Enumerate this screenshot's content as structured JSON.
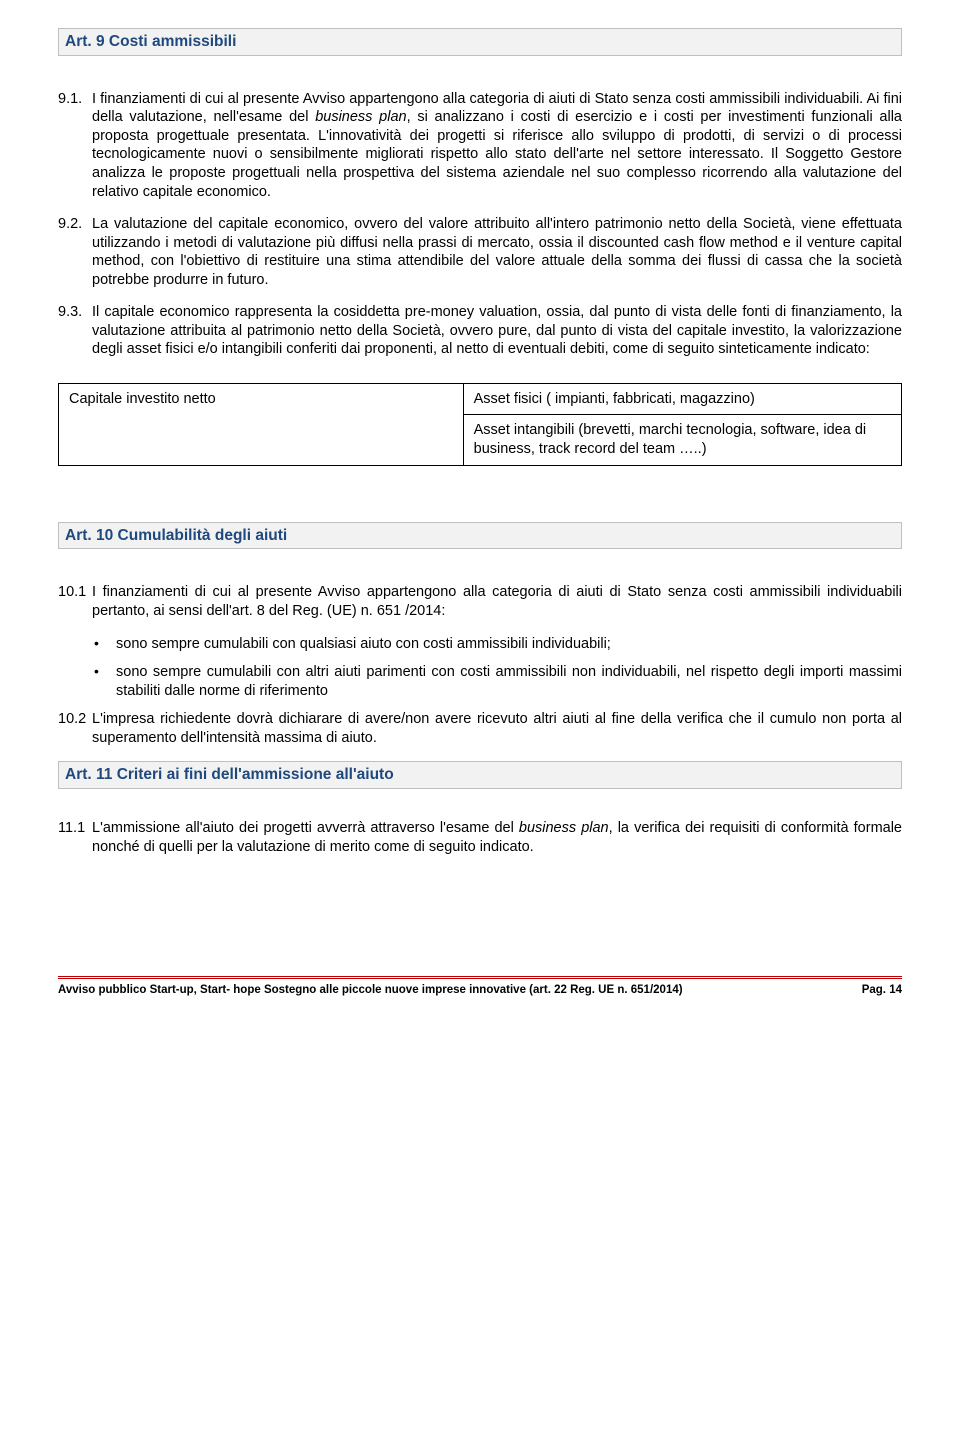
{
  "art9": {
    "title": "Art. 9  Costi ammissibili",
    "paras": [
      {
        "num": "9.1.",
        "text_a": "I finanziamenti di cui al presente Avviso appartengono alla categoria di aiuti di Stato senza costi ammissibili individuabili. Ai fini della valutazione, nell'esame del ",
        "italic1": "business plan",
        "text_b": ", si analizzano i costi di esercizio e i costi per investimenti funzionali alla proposta progettuale presentata. L'innovatività dei progetti si riferisce allo sviluppo di prodotti, di servizi o di processi tecnologicamente nuovi o sensibilmente migliorati rispetto allo stato dell'arte nel settore interessato. Il Soggetto Gestore analizza le proposte progettuali nella prospettiva del sistema aziendale nel suo complesso ricorrendo alla valutazione del relativo capitale economico."
      },
      {
        "num": "9.2.",
        "text": "La valutazione del capitale economico, ovvero del valore attribuito all'intero patrimonio netto della Società, viene effettuata utilizzando i metodi di valutazione più diffusi nella prassi di mercato, ossia il discounted cash flow method e il venture capital method, con l'obiettivo di restituire una stima attendibile del valore attuale della somma dei flussi di cassa che la società potrebbe produrre in futuro."
      },
      {
        "num": "9.3.",
        "text": "Il capitale economico rappresenta la cosiddetta pre-money valuation, ossia, dal punto di vista delle fonti di finanziamento, la valutazione attribuita al patrimonio netto della Società, ovvero pure, dal punto di vista del capitale investito, la valorizzazione degli asset fisici e/o intangibili conferiti dai proponenti, al netto di eventuali debiti, come di seguito sinteticamente indicato:"
      }
    ]
  },
  "table": {
    "label": "Capitale investito netto",
    "row1": "Asset fisici ( impianti, fabbricati, magazzino)",
    "row2": "Asset intangibili (brevetti, marchi tecnologia, software, idea di business, track record del team …..)"
  },
  "art10": {
    "title": "Art. 10  Cumulabilità degli aiuti",
    "p1": {
      "num": "10.1",
      "text": "I finanziamenti di cui al presente Avviso appartengono alla categoria di aiuti di Stato senza costi ammissibili individuabili pertanto, ai sensi dell'art. 8 del Reg. (UE) n. 651 /2014:"
    },
    "bullets": [
      "sono sempre cumulabili con qualsiasi aiuto con costi ammissibili individuabili;",
      "sono sempre cumulabili con altri aiuti parimenti con costi ammissibili non individuabili, nel rispetto degli importi massimi stabiliti dalle norme di riferimento"
    ],
    "p2": {
      "num": "10.2",
      "text": "L'impresa richiedente dovrà dichiarare di avere/non avere ricevuto altri aiuti al fine della verifica che il cumulo non porta al superamento dell'intensità massima di aiuto."
    }
  },
  "art11": {
    "title": "Art. 11   Criteri ai fini dell'ammissione all'aiuto",
    "p1": {
      "num": "11.1",
      "text_a": "L'ammissione all'aiuto dei progetti avverrà  attraverso l'esame del ",
      "italic1": "business plan",
      "text_b": ", la verifica dei requisiti di conformità formale nonché di quelli per la valutazione di merito come di seguito indicato."
    }
  },
  "footer": {
    "left": "Avviso pubblico Start-up, Start- hope Sostegno alle piccole nuove imprese innovative (art. 22 Reg. UE n. 651/2014)",
    "right": "Pag. 14"
  },
  "colors": {
    "heading_text": "#1f497d",
    "heading_bg": "#f2f2f2",
    "heading_border": "#bfbfbf",
    "rule": "#c00000"
  }
}
